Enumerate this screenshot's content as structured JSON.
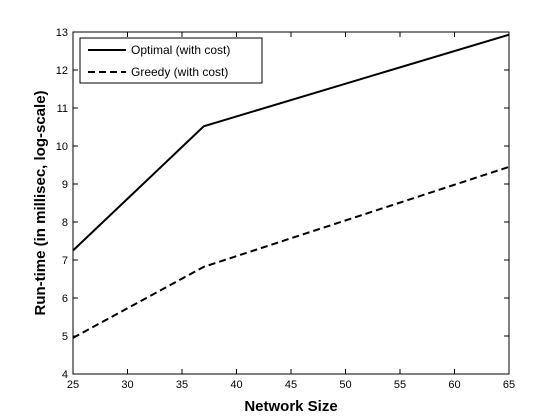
{
  "chart_data": {
    "type": "line",
    "title": "",
    "xlabel": "Network Size",
    "ylabel": "Run-time (in millisec, log-scale)",
    "xlim": [
      25,
      65
    ],
    "ylim": [
      4,
      13
    ],
    "xticks": [
      25,
      30,
      35,
      40,
      45,
      50,
      55,
      60,
      65
    ],
    "yticks": [
      4,
      5,
      6,
      7,
      8,
      9,
      10,
      11,
      12,
      13
    ],
    "grid": false,
    "legend_position": "top-left",
    "series": [
      {
        "name": "Optimal (with cost)",
        "line_style": "solid",
        "color": "#000000",
        "x": [
          25,
          37,
          65
        ],
        "y": [
          7.25,
          10.52,
          12.93
        ]
      },
      {
        "name": "Greedy (with cost)",
        "line_style": "dashed",
        "color": "#000000",
        "x": [
          25,
          37,
          65
        ],
        "y": [
          4.95,
          6.82,
          9.45
        ]
      }
    ]
  }
}
